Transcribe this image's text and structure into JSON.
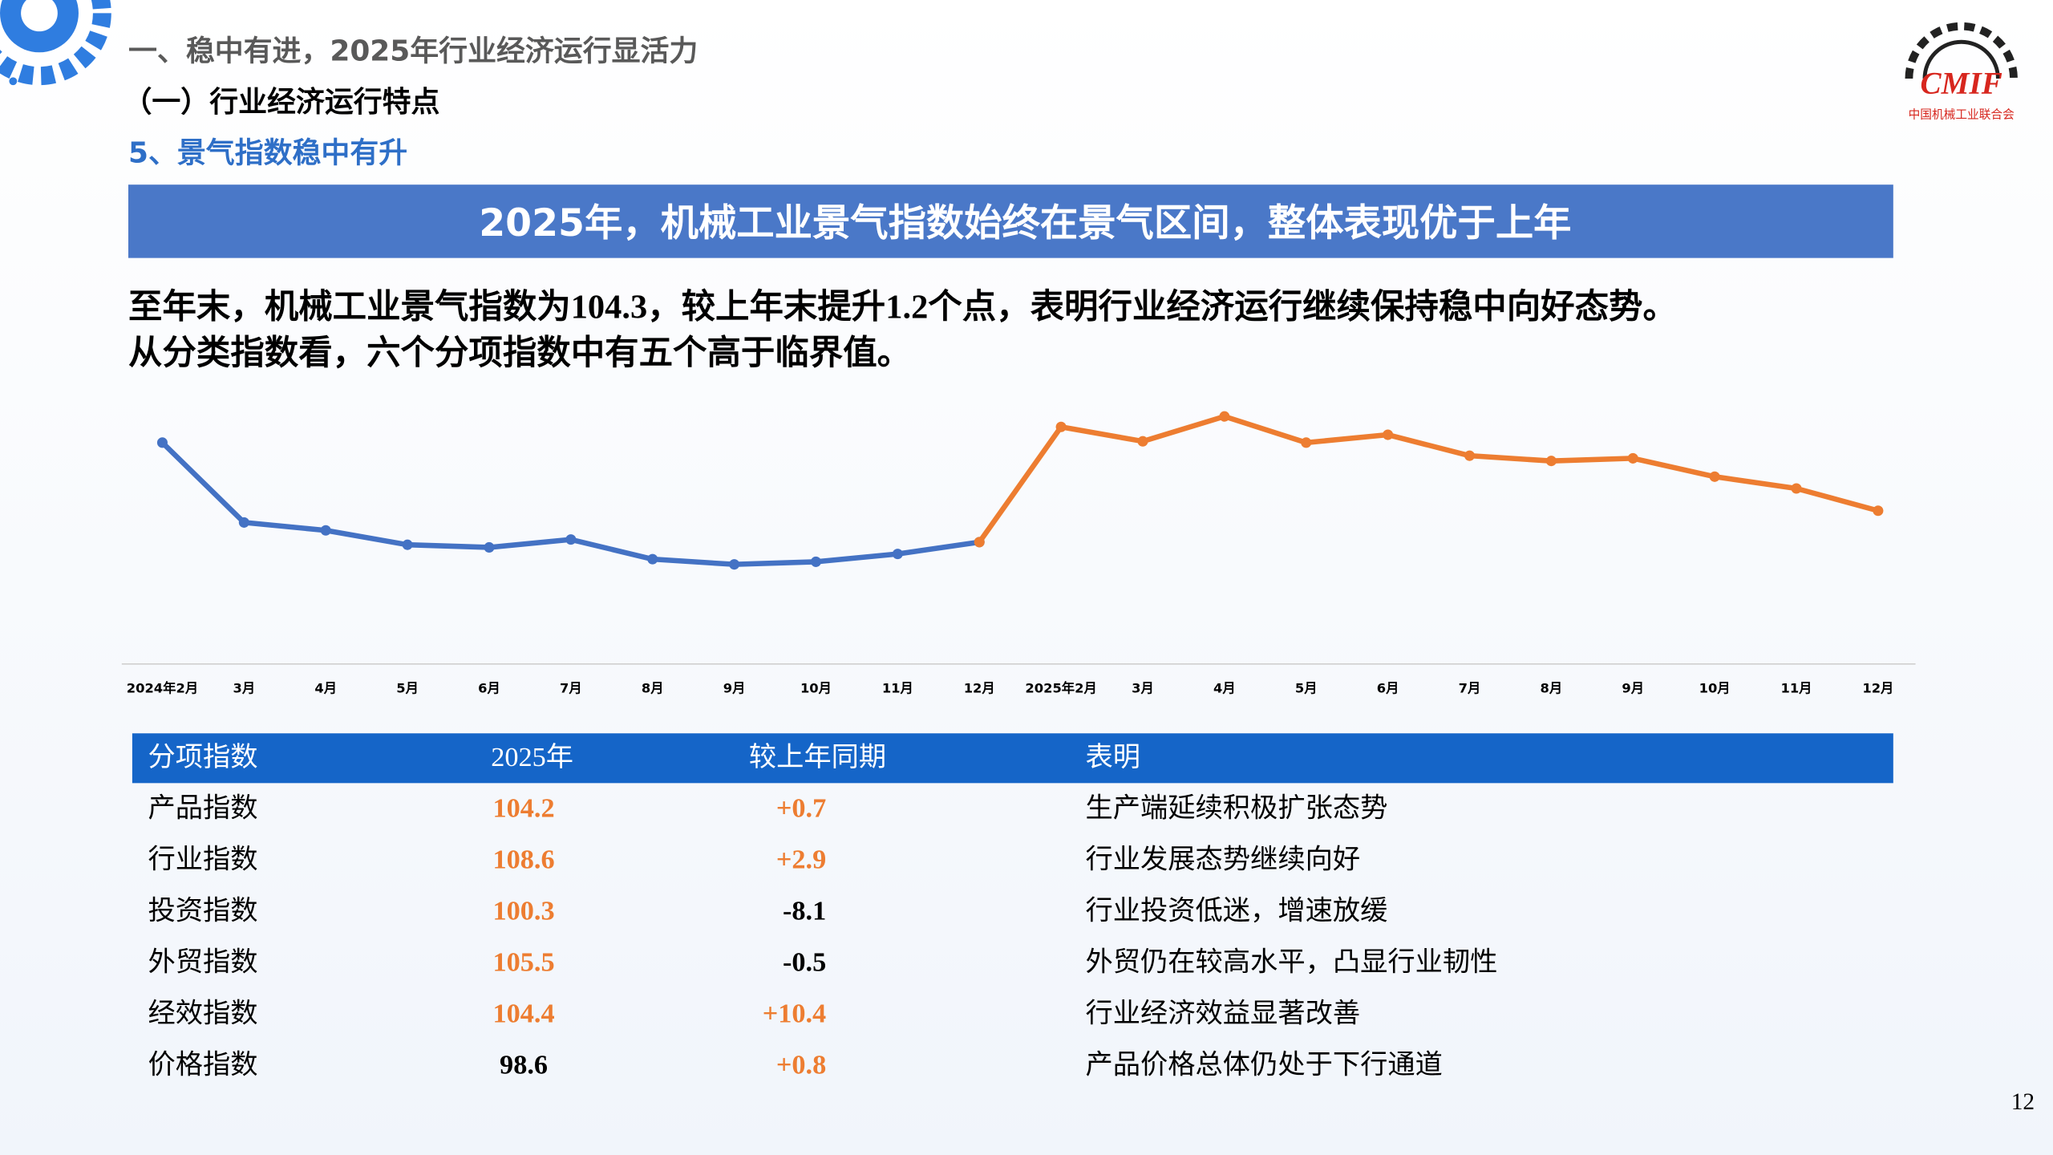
{
  "header": {
    "section": "一、稳中有进，2025年行业经济运行显活力",
    "subsection": "（一）行业经济运行特点",
    "topic": "5、景气指数稳中有升",
    "logo_text": "CMIF",
    "logo_caption": "中国机械工业联合会"
  },
  "banner": "2025年，机械工业景气指数始终在景气区间，整体表现优于上年",
  "paragraph": [
    "至年末，机械工业景气指数为104.3，较上年末提升1.2个点，表明行业经济运行继续保持稳中向好态势。",
    "从分类指数看，六个分项指数中有五个高于临界值。"
  ],
  "chart_data": {
    "type": "line",
    "categories": [
      "2024年2月",
      "3月",
      "4月",
      "5月",
      "6月",
      "7月",
      "8月",
      "9月",
      "10月",
      "11月",
      "12月",
      "2025年2月",
      "3月",
      "4月",
      "5月",
      "6月",
      "7月",
      "8月",
      "9月",
      "10月",
      "11月",
      "12月"
    ],
    "series": [
      {
        "color": "#4472c4",
        "values": [
          106.9,
          103.85,
          103.55,
          103.0,
          102.9,
          103.2,
          102.45,
          102.25,
          102.35,
          102.65,
          103.1,
          null,
          null,
          null,
          null,
          null,
          null,
          null,
          null,
          null,
          null,
          null
        ]
      },
      {
        "color": "#ed7d31",
        "values": [
          null,
          null,
          null,
          null,
          null,
          null,
          null,
          null,
          null,
          null,
          103.1,
          107.5,
          106.95,
          107.9,
          106.9,
          107.2,
          106.4,
          106.2,
          106.3,
          105.6,
          105.15,
          104.3
        ]
      }
    ],
    "ylim": [
      98.45,
      108.8
    ]
  },
  "table": {
    "header_color": "#1565c8",
    "columns": [
      "分项指数",
      "2025年",
      "较上年同期",
      "表明"
    ],
    "rows": [
      [
        "产品指数",
        "104.2",
        "+0.7",
        "生产端延续积极扩张态势"
      ],
      [
        "行业指数",
        "108.6",
        "+2.9",
        "行业发展态势继续向好"
      ],
      [
        "投资指数",
        "100.3",
        "-8.1",
        "行业投资低迷，增速放缓"
      ],
      [
        "外贸指数",
        "105.5",
        "-0.5",
        "外贸仍在较高水平，凸显行业韧性"
      ],
      [
        "经效指数",
        "104.4",
        "+10.4",
        "行业经济效益显著改善"
      ],
      [
        "价格指数",
        "98.6",
        "+0.8",
        "产品价格总体仍处于下行通道"
      ]
    ],
    "colors": [
      [
        "#000000",
        "#ed7d31",
        "#ed7d31",
        "#000000"
      ],
      [
        "#000000",
        "#ed7d31",
        "#ed7d31",
        "#000000"
      ],
      [
        "#000000",
        "#ed7d31",
        "#000000",
        "#000000"
      ],
      [
        "#000000",
        "#ed7d31",
        "#000000",
        "#000000"
      ],
      [
        "#000000",
        "#ed7d31",
        "#ed7d31",
        "#000000"
      ],
      [
        "#000000",
        "#000000",
        "#ed7d31",
        "#000000"
      ]
    ]
  },
  "page_number": "12"
}
